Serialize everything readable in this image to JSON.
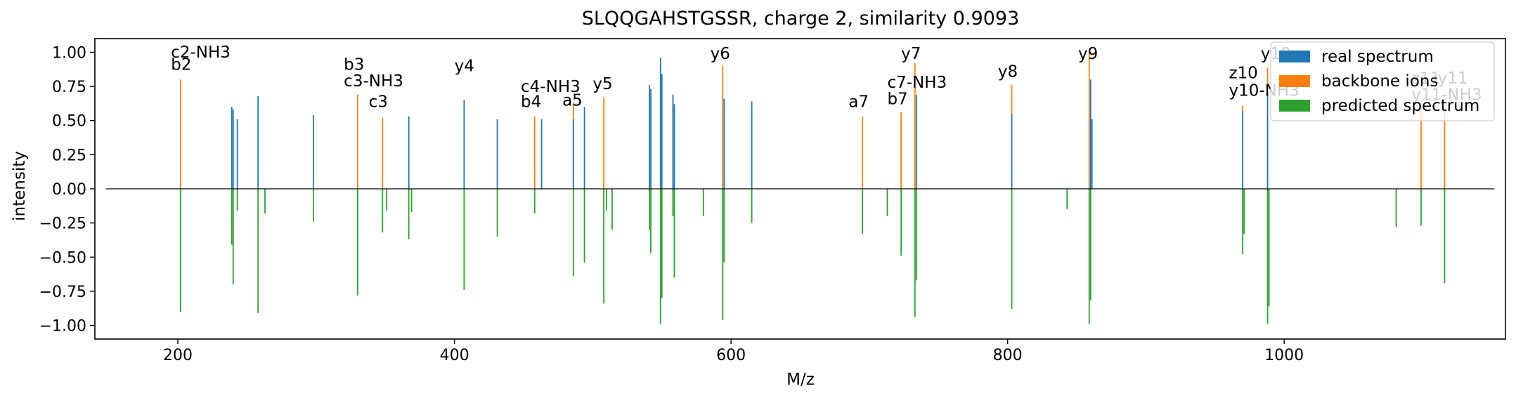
{
  "chart_data": {
    "type": "bar",
    "title": "SLQQGAHSTGSSR, charge 2, similarity 0.9093",
    "xlabel": "M/z",
    "ylabel": "intensity",
    "xlim": [
      140,
      1160
    ],
    "ylim": [
      -1.1,
      1.1
    ],
    "xticks": [
      200,
      400,
      600,
      800,
      1000
    ],
    "yticks": [
      -1.0,
      -0.75,
      -0.5,
      -0.25,
      0.0,
      0.25,
      0.5,
      0.75,
      1.0
    ],
    "xtick_labels": [
      "200",
      "400",
      "600",
      "800",
      "1000"
    ],
    "ytick_labels": [
      "−1.00",
      "−0.75",
      "−0.50",
      "−0.25",
      "0.00",
      "0.25",
      "0.50",
      "0.75",
      "1.00"
    ],
    "legend_position": "upper-right",
    "colors": {
      "real": "#1f77b4",
      "backbone": "#ff7f0e",
      "predicted": "#2ca02c",
      "baseline": "#000000"
    },
    "series": [
      {
        "name": "real spectrum",
        "color": "#1f77b4",
        "x": [
          239,
          240,
          243,
          258,
          298,
          367,
          407,
          431,
          463,
          486,
          494,
          541,
          542,
          549,
          550,
          558,
          559,
          595,
          615,
          734,
          803,
          860,
          861,
          970,
          988
        ],
        "y": [
          0.6,
          0.58,
          0.51,
          0.68,
          0.54,
          0.53,
          0.65,
          0.51,
          0.51,
          0.51,
          0.6,
          0.76,
          0.73,
          0.96,
          0.84,
          0.69,
          0.62,
          0.66,
          0.64,
          0.69,
          0.55,
          0.8,
          0.51,
          0.57,
          0.71
        ]
      },
      {
        "name": "backbone ions",
        "color": "#ff7f0e",
        "x": [
          202,
          330,
          348,
          458,
          486,
          508,
          594,
          695,
          723,
          733,
          803,
          859,
          970,
          988,
          1099,
          1116
        ],
        "y": [
          0.8,
          0.69,
          0.52,
          0.53,
          0.63,
          0.67,
          0.9,
          0.53,
          0.56,
          0.92,
          0.76,
          1.0,
          0.61,
          0.89,
          0.65,
          0.6
        ]
      },
      {
        "name": "predicted spectrum",
        "color": "#2ca02c",
        "x": [
          202,
          239,
          240,
          243,
          258,
          263,
          298,
          330,
          348,
          351,
          367,
          369,
          407,
          431,
          458,
          486,
          494,
          508,
          510,
          514,
          541,
          542,
          549,
          550,
          558,
          559,
          580,
          594,
          595,
          615,
          695,
          713,
          723,
          733,
          734,
          803,
          843,
          859,
          860,
          970,
          971,
          988,
          989,
          1081,
          1099,
          1116
        ],
        "y": [
          -0.9,
          -0.41,
          -0.7,
          -0.16,
          -0.91,
          -0.18,
          -0.24,
          -0.78,
          -0.32,
          -0.16,
          -0.37,
          -0.17,
          -0.74,
          -0.35,
          -0.18,
          -0.64,
          -0.54,
          -0.84,
          -0.16,
          -0.3,
          -0.3,
          -0.47,
          -0.99,
          -0.8,
          -0.2,
          -0.65,
          -0.2,
          -0.96,
          -0.54,
          -0.25,
          -0.33,
          -0.2,
          -0.49,
          -0.94,
          -0.67,
          -0.88,
          -0.15,
          -0.99,
          -0.82,
          -0.48,
          -0.33,
          -0.99,
          -0.86,
          -0.28,
          -0.27,
          -0.69
        ]
      }
    ],
    "annotations": [
      {
        "text": "c2-NH3",
        "x": 195,
        "y": 0.96
      },
      {
        "text": "b2",
        "x": 195,
        "y": 0.87
      },
      {
        "text": "b3",
        "x": 320,
        "y": 0.87
      },
      {
        "text": "c3-NH3",
        "x": 320,
        "y": 0.75
      },
      {
        "text": "c3",
        "x": 338,
        "y": 0.6
      },
      {
        "text": "y4",
        "x": 400,
        "y": 0.86
      },
      {
        "text": "c4-NH3",
        "x": 448,
        "y": 0.71
      },
      {
        "text": "b4",
        "x": 448,
        "y": 0.6
      },
      {
        "text": "a5",
        "x": 478,
        "y": 0.61
      },
      {
        "text": "y5",
        "x": 500,
        "y": 0.73
      },
      {
        "text": "y6",
        "x": 585,
        "y": 0.95
      },
      {
        "text": "a7",
        "x": 685,
        "y": 0.6
      },
      {
        "text": "y7",
        "x": 723,
        "y": 0.95
      },
      {
        "text": "c7-NH3",
        "x": 713,
        "y": 0.74
      },
      {
        "text": "b7",
        "x": 713,
        "y": 0.62
      },
      {
        "text": "y8",
        "x": 793,
        "y": 0.82
      },
      {
        "text": "y9",
        "x": 851,
        "y": 0.95
      },
      {
        "text": "y10",
        "x": 983,
        "y": 0.95
      },
      {
        "text": "z10",
        "x": 960,
        "y": 0.81
      },
      {
        "text": "y10-NH3",
        "x": 960,
        "y": 0.68
      },
      {
        "text": "z11",
        "x": 1092,
        "y": 0.77
      },
      {
        "text": "y11",
        "x": 1111,
        "y": 0.77
      },
      {
        "text": "y11-NH3",
        "x": 1092,
        "y": 0.65
      }
    ]
  }
}
